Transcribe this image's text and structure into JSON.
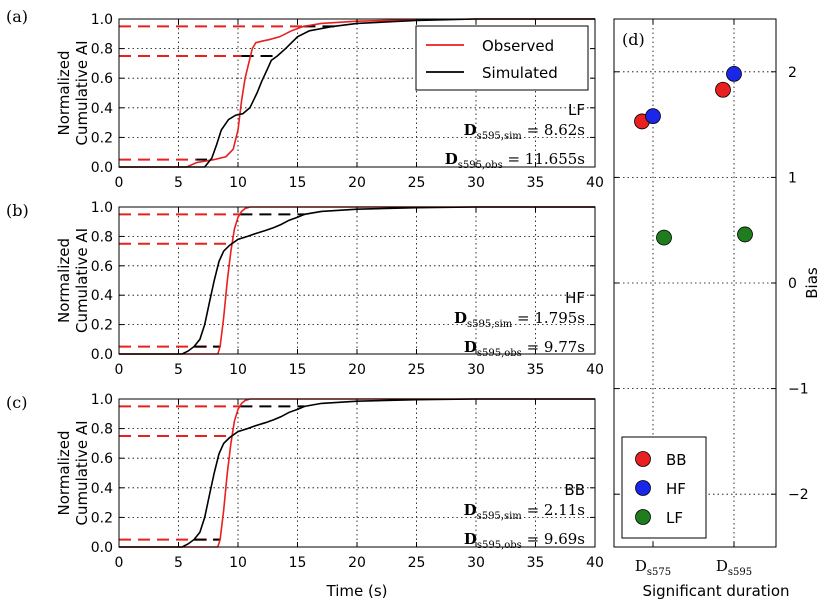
{
  "panel_letters": [
    "(a)",
    "(b)",
    "(c)",
    "(d)"
  ],
  "colors": {
    "observed": "#e8201f",
    "simulated": "#000000",
    "BB": "#e8201f",
    "HF": "#1a26e8",
    "LF": "#1f7d1f"
  },
  "chart_data": [
    {
      "type": "line",
      "panel": "(a)",
      "xlabel": "",
      "ylabel": "Normalized\nCumulative AI",
      "xlim": [
        0,
        40
      ],
      "ylim": [
        0,
        1.0
      ],
      "xticks": [
        "0",
        "5",
        "10",
        "15",
        "20",
        "25",
        "30",
        "35",
        "40"
      ],
      "yticks": [
        "0.0",
        "0.2",
        "0.4",
        "0.6",
        "0.8",
        "1.0"
      ],
      "grid": true,
      "legend": {
        "placement": "top-right",
        "entries": [
          "Observed",
          "Simulated"
        ]
      },
      "annotation_lines": [
        "LF",
        "D_s595,sim = 8.62s",
        "D_s595,obs = 11.655s"
      ],
      "series": [
        {
          "name": "Observed",
          "color": "#e8201f",
          "x": [
            0,
            5.7,
            6.5,
            8,
            9,
            9.6,
            10,
            10.3,
            10.6,
            10.9,
            11.2,
            11.5,
            12,
            12.6,
            13.5,
            14.5,
            15.5,
            17,
            20,
            25,
            30,
            40
          ],
          "y": [
            0,
            0,
            0.03,
            0.05,
            0.07,
            0.12,
            0.25,
            0.45,
            0.6,
            0.7,
            0.8,
            0.84,
            0.85,
            0.86,
            0.88,
            0.92,
            0.95,
            0.97,
            0.985,
            0.995,
            1,
            1
          ]
        },
        {
          "name": "Simulated",
          "color": "#000000",
          "x": [
            0,
            7.2,
            7.4,
            7.8,
            8.2,
            8.6,
            9.2,
            9.8,
            10.4,
            11,
            11.6,
            12,
            12.4,
            12.8,
            13.3,
            14,
            15,
            16,
            18,
            20,
            25,
            30,
            40
          ],
          "y": [
            0,
            0,
            0.02,
            0.06,
            0.15,
            0.25,
            0.32,
            0.35,
            0.36,
            0.4,
            0.5,
            0.58,
            0.65,
            0.72,
            0.75,
            0.8,
            0.88,
            0.92,
            0.95,
            0.97,
            0.99,
            1,
            1
          ]
        }
      ],
      "reference_lines": [
        {
          "y": 0.05,
          "x_start": 0,
          "x_end_red": 6.5,
          "x_end_black": 7.4
        },
        {
          "y": 0.75,
          "x_start": 0,
          "x_end_red": 10.3,
          "x_end_black": 13.3
        },
        {
          "y": 0.95,
          "x_start": 0,
          "x_end_red": 15.5,
          "x_end_black": 18.5
        }
      ]
    },
    {
      "type": "line",
      "panel": "(b)",
      "xlabel": "",
      "ylabel": "Normalized\nCumulative AI",
      "xlim": [
        0,
        40
      ],
      "ylim": [
        0,
        1.0
      ],
      "xticks": [
        "0",
        "5",
        "10",
        "15",
        "20",
        "25",
        "30",
        "35",
        "40"
      ],
      "yticks": [
        "0.0",
        "0.2",
        "0.4",
        "0.6",
        "0.8",
        "1.0"
      ],
      "grid": true,
      "annotation_lines": [
        "HF",
        "D_s595,sim = 1.795s",
        "D_s595,obs = 9.77s"
      ],
      "series": [
        {
          "name": "Observed",
          "color": "#e8201f",
          "x": [
            0,
            8.3,
            8.5,
            8.8,
            9.1,
            9.4,
            9.7,
            10,
            10.3,
            10.6,
            11,
            40
          ],
          "y": [
            0,
            0,
            0.05,
            0.25,
            0.5,
            0.7,
            0.85,
            0.93,
            0.97,
            0.99,
            1,
            1
          ]
        },
        {
          "name": "Simulated",
          "color": "#000000",
          "x": [
            0,
            5.3,
            5.8,
            6.3,
            6.8,
            7.2,
            7.6,
            8,
            8.4,
            8.8,
            9.3,
            10,
            10.8,
            11.5,
            12.3,
            13,
            13.6,
            14.3,
            15,
            15.6,
            17,
            20,
            25,
            30,
            40
          ],
          "y": [
            0,
            0,
            0.02,
            0.05,
            0.1,
            0.2,
            0.35,
            0.5,
            0.63,
            0.7,
            0.74,
            0.78,
            0.8,
            0.82,
            0.84,
            0.86,
            0.88,
            0.91,
            0.93,
            0.95,
            0.97,
            0.985,
            0.995,
            1,
            1
          ]
        }
      ],
      "reference_lines": [
        {
          "y": 0.05,
          "x_start": 0,
          "x_end_red": 8.5,
          "x_end_black": 6.3
        },
        {
          "y": 0.75,
          "x_start": 0,
          "x_end_red": 9.3,
          "x_end_black": 9.3
        },
        {
          "y": 0.95,
          "x_start": 0,
          "x_end_red": 10.2,
          "x_end_black": 15.6
        }
      ]
    },
    {
      "type": "line",
      "panel": "(c)",
      "xlabel": "Time (s)",
      "ylabel": "Normalized\nCumulative AI",
      "xlim": [
        0,
        40
      ],
      "ylim": [
        0,
        1.0
      ],
      "xticks": [
        "0",
        "5",
        "10",
        "15",
        "20",
        "25",
        "30",
        "35",
        "40"
      ],
      "yticks": [
        "0.0",
        "0.2",
        "0.4",
        "0.6",
        "0.8",
        "1.0"
      ],
      "grid": true,
      "annotation_lines": [
        "BB",
        "D_s595,sim = 2.11s",
        "D_s595,obs = 9.69s"
      ],
      "series": [
        {
          "name": "Observed",
          "color": "#e8201f",
          "x": [
            0,
            8.3,
            8.5,
            8.8,
            9.1,
            9.4,
            9.7,
            10,
            10.3,
            10.6,
            11,
            40
          ],
          "y": [
            0,
            0,
            0.05,
            0.25,
            0.5,
            0.7,
            0.85,
            0.93,
            0.97,
            0.99,
            1,
            1
          ]
        },
        {
          "name": "Simulated",
          "color": "#000000",
          "x": [
            0,
            5.3,
            5.8,
            6.3,
            6.8,
            7.2,
            7.6,
            8,
            8.4,
            8.8,
            9.3,
            10,
            10.8,
            11.5,
            12.3,
            13,
            13.6,
            14.3,
            15,
            15.6,
            17,
            20,
            25,
            30,
            40
          ],
          "y": [
            0,
            0,
            0.02,
            0.05,
            0.1,
            0.2,
            0.35,
            0.5,
            0.63,
            0.7,
            0.74,
            0.78,
            0.8,
            0.82,
            0.84,
            0.86,
            0.88,
            0.91,
            0.93,
            0.95,
            0.97,
            0.985,
            0.995,
            1,
            1
          ]
        }
      ],
      "reference_lines": [
        {
          "y": 0.05,
          "x_start": 0,
          "x_end_red": 8.5,
          "x_end_black": 6.3
        },
        {
          "y": 0.75,
          "x_start": 0,
          "x_end_red": 9.3,
          "x_end_black": 9.3
        },
        {
          "y": 0.95,
          "x_start": 0,
          "x_end_red": 10.2,
          "x_end_black": 15.6
        }
      ]
    },
    {
      "type": "scatter",
      "panel": "(d)",
      "xlabel": "Significant duration",
      "ylabel": "Bias",
      "ylim": [
        -2.5,
        2.5
      ],
      "yticks": [
        "2",
        "1",
        "0",
        "−1",
        "−2"
      ],
      "ytick_values": [
        2,
        1,
        0,
        -1,
        -2
      ],
      "categories": [
        "D_s575",
        "D_s595"
      ],
      "grid": true,
      "legend": {
        "placement": "bottom-left",
        "entries": [
          "BB",
          "HF",
          "LF"
        ]
      },
      "series": [
        {
          "name": "BB",
          "color": "#e8201f",
          "points": [
            {
              "category": "D_s575",
              "offset": -0.25,
              "y": 1.53
            },
            {
              "category": "D_s595",
              "offset": -0.25,
              "y": 1.83
            }
          ]
        },
        {
          "name": "HF",
          "color": "#1a26e8",
          "points": [
            {
              "category": "D_s575",
              "offset": 0.0,
              "y": 1.58
            },
            {
              "category": "D_s595",
              "offset": 0.0,
              "y": 1.98
            }
          ]
        },
        {
          "name": "LF",
          "color": "#1f7d1f",
          "points": [
            {
              "category": "D_s575",
              "offset": 0.25,
              "y": 0.43
            },
            {
              "category": "D_s595",
              "offset": 0.25,
              "y": 0.46
            }
          ]
        }
      ]
    }
  ]
}
